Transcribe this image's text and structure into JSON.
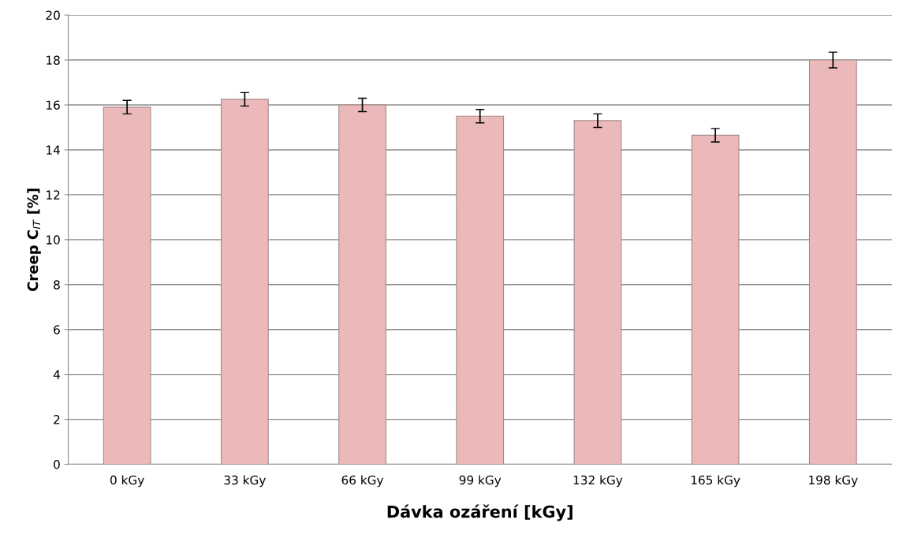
{
  "chart_data": {
    "type": "bar",
    "xlabel": "Dávka ozáření [kGy]",
    "ylabel": "Creep C$_{IT}$ [%]",
    "categories": [
      "0 kGy",
      "33 kGy",
      "66 kGy",
      "99 kGy",
      "132 kGy",
      "165 kGy",
      "198 kGy"
    ],
    "values": [
      15.9,
      16.25,
      16.0,
      15.5,
      15.3,
      14.65,
      18.0
    ],
    "errors": [
      0.3,
      0.3,
      0.3,
      0.3,
      0.3,
      0.3,
      0.35
    ],
    "color": "#ebb9b9",
    "ylim": [
      0,
      20
    ],
    "yticks": [
      0,
      2,
      4,
      6,
      8,
      10,
      12,
      14,
      16,
      18,
      20
    ],
    "grid": "y"
  }
}
